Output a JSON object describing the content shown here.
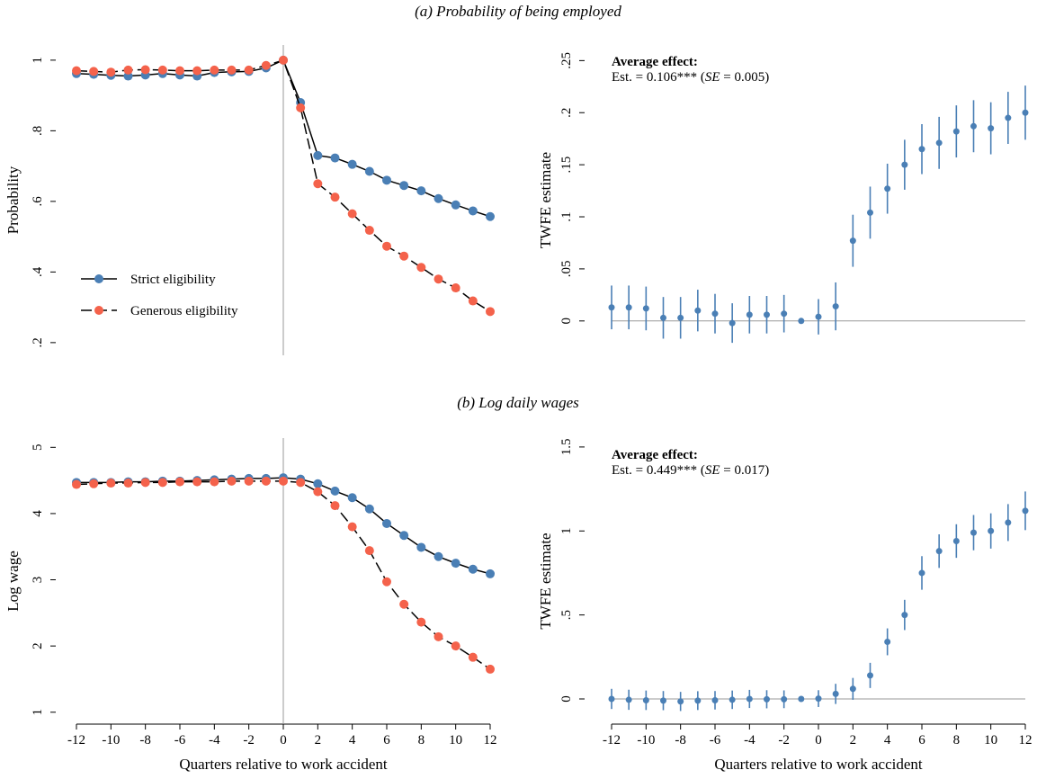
{
  "headings": [
    "(a) Probability of being employed",
    "(b) Log daily wages"
  ],
  "chart_data": [
    {
      "type": "line",
      "ylabel": "Probability",
      "x": [
        -12,
        -11,
        -10,
        -9,
        -8,
        -7,
        -6,
        -5,
        -4,
        -3,
        -2,
        -1,
        0,
        1,
        2,
        3,
        4,
        5,
        6,
        7,
        8,
        9,
        10,
        11,
        12
      ],
      "series": [
        {
          "name": "Strict eligibility",
          "color": "#4a7fb5",
          "line_color": "#000000",
          "linestyle": "solid",
          "values": [
            0.962,
            0.96,
            0.957,
            0.955,
            0.958,
            0.962,
            0.958,
            0.955,
            0.965,
            0.967,
            0.968,
            0.978,
            1.0,
            0.88,
            0.73,
            0.723,
            0.705,
            0.685,
            0.66,
            0.645,
            0.63,
            0.608,
            0.59,
            0.573,
            0.557
          ]
        },
        {
          "name": "Generous eligibility",
          "color": "#f4624b",
          "line_color": "#000000",
          "linestyle": "dashed",
          "values": [
            0.97,
            0.968,
            0.966,
            0.972,
            0.973,
            0.972,
            0.97,
            0.97,
            0.972,
            0.972,
            0.972,
            0.985,
            1.0,
            0.865,
            0.65,
            0.612,
            0.565,
            0.518,
            0.473,
            0.445,
            0.413,
            0.38,
            0.355,
            0.318,
            0.288
          ]
        }
      ],
      "xlim": [
        -12,
        12
      ],
      "ylim": [
        0.164,
        1.043
      ],
      "yticks": [
        {
          "value": 1,
          "label": "1"
        },
        {
          "value": 0.8,
          "label": ".8"
        },
        {
          "value": 0.6,
          "label": ".6"
        },
        {
          "value": 0.4,
          "label": ".4"
        },
        {
          "value": 0.2,
          "label": ".2"
        }
      ],
      "vline": 0,
      "legend": "lower left"
    },
    {
      "type": "errorbar",
      "ylabel": "TWFE estimate",
      "color": "#4a7fb5",
      "x": [
        -12,
        -11,
        -10,
        -9,
        -8,
        -7,
        -6,
        -5,
        -4,
        -3,
        -2,
        -1,
        0,
        1,
        2,
        3,
        4,
        5,
        6,
        7,
        8,
        9,
        10,
        11,
        12
      ],
      "values": [
        0.013,
        0.013,
        0.012,
        0.003,
        0.003,
        0.01,
        0.007,
        -0.002,
        0.006,
        0.006,
        0.007,
        0,
        0.004,
        0.014,
        0.077,
        0.104,
        0.127,
        0.15,
        0.165,
        0.171,
        0.182,
        0.187,
        0.185,
        0.195,
        0.2
      ],
      "errors": [
        0.021,
        0.021,
        0.021,
        0.02,
        0.02,
        0.02,
        0.019,
        0.019,
        0.018,
        0.018,
        0.018,
        0,
        0.017,
        0.023,
        0.025,
        0.025,
        0.024,
        0.024,
        0.024,
        0.025,
        0.025,
        0.025,
        0.025,
        0.025,
        0.026
      ],
      "xlim": [
        -12,
        12
      ],
      "ylim": [
        -0.033,
        0.265
      ],
      "yticks": [
        0,
        {
          "value": 0.05,
          "label": ".05"
        },
        {
          "value": 0.1,
          "label": ".1"
        },
        {
          "value": 0.15,
          "label": ".15"
        },
        {
          "value": 0.2,
          "label": ".2"
        },
        {
          "value": 0.25,
          "label": ".25"
        }
      ],
      "hline": 0,
      "annotation": {
        "title": "Average effect:",
        "parts": [
          "Est. = 0.106*** (",
          "SE",
          " = 0.005)"
        ]
      }
    },
    {
      "type": "line",
      "ylabel": "Log wage",
      "xlabel": "Quarters relative to work accident",
      "x": [
        -12,
        -11,
        -10,
        -9,
        -8,
        -7,
        -6,
        -5,
        -4,
        -3,
        -2,
        -1,
        0,
        1,
        2,
        3,
        4,
        5,
        6,
        7,
        8,
        9,
        10,
        11,
        12
      ],
      "series": [
        {
          "color": "#4a7fb5",
          "line_color": "#000000",
          "linestyle": "solid",
          "values": [
            4.47,
            4.47,
            4.47,
            4.48,
            4.48,
            4.49,
            4.49,
            4.5,
            4.51,
            4.52,
            4.53,
            4.53,
            4.54,
            4.52,
            4.45,
            4.34,
            4.24,
            4.07,
            3.85,
            3.67,
            3.49,
            3.35,
            3.25,
            3.16,
            3.09
          ]
        },
        {
          "color": "#f4624b",
          "line_color": "#000000",
          "linestyle": "dashed",
          "values": [
            4.44,
            4.45,
            4.46,
            4.46,
            4.47,
            4.47,
            4.48,
            4.48,
            4.48,
            4.49,
            4.49,
            4.49,
            4.49,
            4.47,
            4.33,
            4.12,
            3.8,
            3.44,
            2.97,
            2.63,
            2.36,
            2.14,
            2.0,
            1.83,
            1.65
          ]
        }
      ],
      "xlim": [
        -12,
        12
      ],
      "ylim": [
        0.82,
        5.14
      ],
      "xticks": [
        -12,
        -10,
        -8,
        -6,
        -4,
        -2,
        0,
        2,
        4,
        6,
        8,
        10,
        12
      ],
      "yticks": [
        5,
        4,
        3,
        2,
        1
      ],
      "vline": 0
    },
    {
      "type": "errorbar",
      "ylabel": "TWFE estimate",
      "xlabel": "Quarters relative to work accident",
      "color": "#4a7fb5",
      "x": [
        -12,
        -11,
        -10,
        -9,
        -8,
        -7,
        -6,
        -5,
        -4,
        -3,
        -2,
        -1,
        0,
        1,
        2,
        3,
        4,
        5,
        6,
        7,
        8,
        9,
        10,
        11,
        12
      ],
      "values": [
        0,
        -0.005,
        -0.008,
        -0.01,
        -0.015,
        -0.01,
        -0.008,
        -0.005,
        0,
        -0.002,
        -0.002,
        0,
        0.002,
        0.03,
        0.06,
        0.14,
        0.34,
        0.5,
        0.75,
        0.88,
        0.94,
        0.99,
        1.0,
        1.05,
        1.12
      ],
      "errors": [
        0.06,
        0.06,
        0.058,
        0.057,
        0.057,
        0.056,
        0.055,
        0.055,
        0.054,
        0.054,
        0.053,
        0,
        0.05,
        0.06,
        0.065,
        0.075,
        0.08,
        0.09,
        0.1,
        0.1,
        0.1,
        0.105,
        0.105,
        0.11,
        0.115
      ],
      "xlim": [
        -12,
        12
      ],
      "ylim": [
        -0.15,
        1.553
      ],
      "xticks": [
        -12,
        -10,
        -8,
        -6,
        -4,
        -2,
        0,
        2,
        4,
        6,
        8,
        10,
        12
      ],
      "yticks": [
        0,
        {
          "value": 0.5,
          "label": ".5"
        },
        1,
        1.5
      ],
      "hline": 0,
      "annotation": {
        "title": "Average effect:",
        "parts": [
          "Est. = 0.449*** (",
          "SE",
          " = 0.017)"
        ]
      }
    }
  ]
}
